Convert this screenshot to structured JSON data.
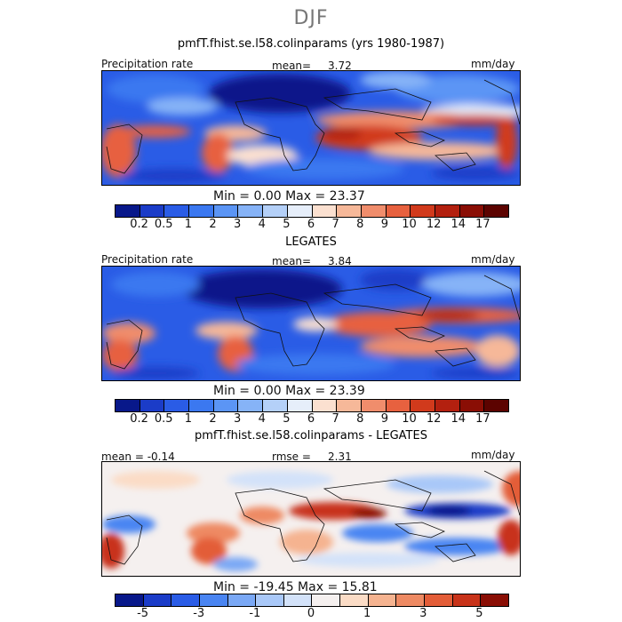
{
  "figure": {
    "suptitle": "DJF",
    "top_title": "pmfT.fhist.se.l58.colinparams (yrs 1980-1987)",
    "middle_title": "LEGATES",
    "bottom_title": "pmfT.fhist.se.l58.colinparams - LEGATES"
  },
  "panels": [
    {
      "left_label": "Precipitation rate",
      "stat_label": "mean=",
      "stat_value": "3.72",
      "units": "mm/day",
      "minmax": "Min =    0.00  Max =  23.37"
    },
    {
      "left_label": "Precipitation rate",
      "stat_label": "mean=",
      "stat_value": "3.84",
      "units": "mm/day",
      "minmax": "Min =    0.00  Max =  23.39"
    },
    {
      "left_label": "mean =  -0.14",
      "stat_label": "rmse =",
      "stat_value": "2.31",
      "units": "mm/day",
      "minmax": "Min = -19.45  Max =  15.81"
    }
  ],
  "colorbars": {
    "precip": {
      "colors": [
        "#08188a",
        "#1b3cc8",
        "#2a5ce6",
        "#3b78f0",
        "#5b95f5",
        "#86b3f7",
        "#b4d0f8",
        "#e6eefa",
        "#fbe0d0",
        "#f6b899",
        "#f08d6c",
        "#e7613f",
        "#d13a1c",
        "#b3200f",
        "#8a0e05",
        "#5c0300"
      ],
      "ticks": [
        "0.2",
        "0.5",
        "1",
        "2",
        "3",
        "4",
        "5",
        "6",
        "7",
        "8",
        "9",
        "10",
        "12",
        "14",
        "17"
      ]
    },
    "diff": {
      "colors": [
        "#08188a",
        "#1b3cc8",
        "#2a5ce6",
        "#4a85f2",
        "#7aa8f5",
        "#a9c8f8",
        "#d3e2f9",
        "#f5f0ef",
        "#fbdcc6",
        "#f5b390",
        "#ee8a63",
        "#e35d38",
        "#c8331a",
        "#8a0e05"
      ],
      "ticks": [
        "-5",
        "-3",
        "-1",
        "0",
        "1",
        "3",
        "5"
      ]
    }
  },
  "chart_data": [
    {
      "type": "heatmap",
      "title": "pmfT.fhist.se.l58.colinparams (yrs 1980-1987)",
      "variable": "Precipitation rate",
      "units": "mm/day",
      "mean": 3.72,
      "min": 0.0,
      "max": 23.37,
      "levels": [
        0.2,
        0.5,
        1,
        2,
        3,
        4,
        5,
        6,
        7,
        8,
        9,
        10,
        12,
        14,
        17
      ]
    },
    {
      "type": "heatmap",
      "title": "LEGATES",
      "variable": "Precipitation rate",
      "units": "mm/day",
      "mean": 3.84,
      "min": 0.0,
      "max": 23.39,
      "levels": [
        0.2,
        0.5,
        1,
        2,
        3,
        4,
        5,
        6,
        7,
        8,
        9,
        10,
        12,
        14,
        17
      ]
    },
    {
      "type": "heatmap",
      "title": "pmfT.fhist.se.l58.colinparams - LEGATES",
      "units": "mm/day",
      "mean": -0.14,
      "rmse": 2.31,
      "min": -19.45,
      "max": 15.81,
      "levels": [
        -5,
        -3,
        -1,
        0,
        1,
        3,
        5
      ]
    }
  ]
}
